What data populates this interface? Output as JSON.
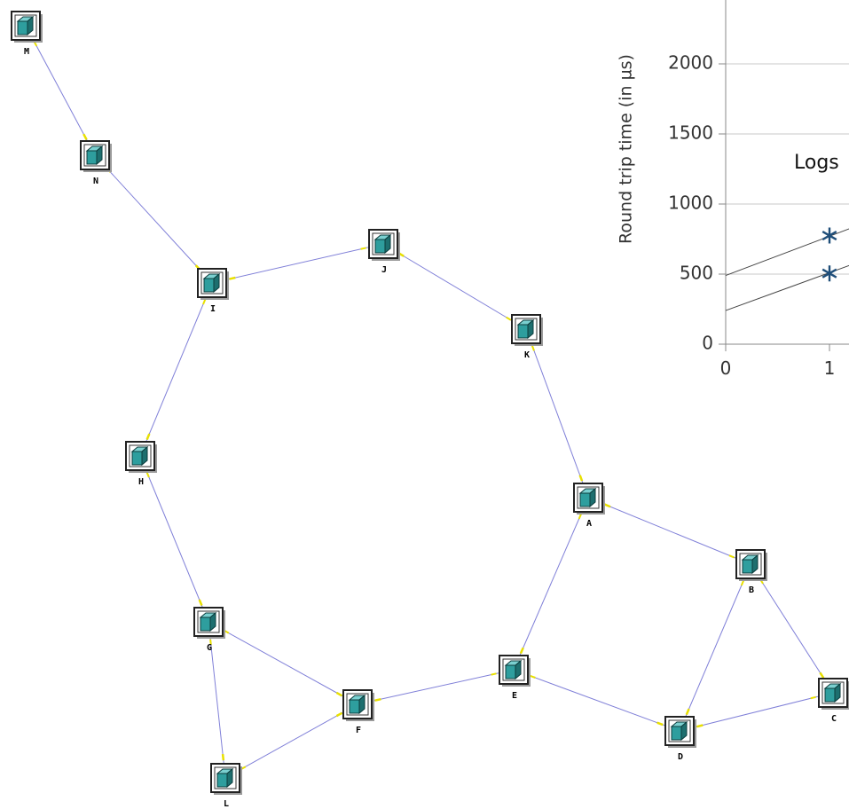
{
  "nodes": [
    {
      "label": "M"
    },
    {
      "label": "N"
    },
    {
      "label": "I"
    },
    {
      "label": "J"
    },
    {
      "label": "K"
    },
    {
      "label": "H"
    },
    {
      "label": "A"
    },
    {
      "label": "B"
    },
    {
      "label": "G"
    },
    {
      "label": "E"
    },
    {
      "label": "F"
    },
    {
      "label": "D"
    },
    {
      "label": "C"
    },
    {
      "label": "L"
    }
  ],
  "chart_data": {
    "type": "scatter",
    "ylabel": "Round trip time (in µs)",
    "legend_text": "Logs",
    "x": [
      0,
      1
    ],
    "xlim": [
      0,
      1.2
    ],
    "ylim": [
      0,
      2500
    ],
    "xticks": [
      0,
      1
    ],
    "yticks": [
      0,
      500,
      1000,
      1500,
      2000,
      2500
    ],
    "grid": true,
    "series": [
      {
        "color": "#1f4e79",
        "values": [
          null,
          775
        ]
      },
      {
        "color": "#1f4e79",
        "values": [
          null,
          505
        ]
      }
    ],
    "lines": [
      {
        "color": "#444444",
        "x": [
          0,
          1.2
        ],
        "values": [
          490,
          826
        ]
      },
      {
        "color": "#444444",
        "x": [
          0,
          1.2
        ],
        "values": [
          240,
          564
        ]
      }
    ]
  }
}
